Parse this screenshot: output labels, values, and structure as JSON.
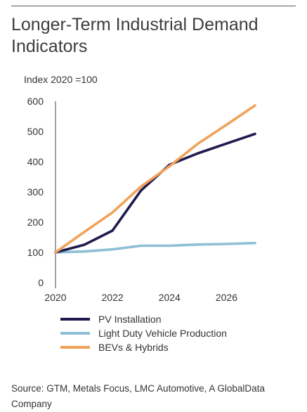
{
  "title": "Longer-Term Industrial Demand Indicators",
  "source": "Source: GTM, Metals Focus, LMC Automotive, A GlobalData Company",
  "chart_data": {
    "type": "line",
    "ylabel": "Index 2020 =100",
    "xlabel": "",
    "xlim": [
      2020,
      2027
    ],
    "ylim": [
      0,
      600
    ],
    "x_ticks": [
      2020,
      2022,
      2024,
      2026
    ],
    "y_ticks": [
      0,
      100,
      200,
      300,
      400,
      500,
      600
    ],
    "grid": false,
    "legend_position": "bottom-left",
    "x": [
      2020,
      2021,
      2022,
      2023,
      2024,
      2025,
      2026,
      2027
    ],
    "series": [
      {
        "name": "PV Installation",
        "color": "#1f1a4d",
        "values": [
          100,
          125,
          172,
          305,
          390,
          428,
          460,
          492
        ]
      },
      {
        "name": "Light Duty Vehicle Production",
        "color": "#8ebfd4",
        "values": [
          100,
          103,
          110,
          122,
          122,
          126,
          128,
          131
        ]
      },
      {
        "name": "BEVs & Hybrids",
        "color": "#f0a25a",
        "values": [
          100,
          167,
          232,
          318,
          385,
          460,
          522,
          586
        ]
      }
    ]
  }
}
